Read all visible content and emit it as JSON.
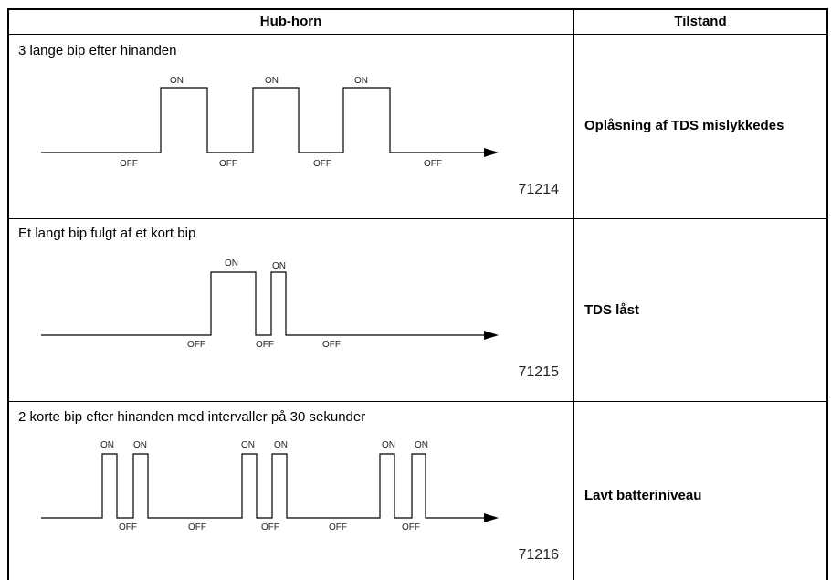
{
  "header": {
    "col1": "Hub-horn",
    "col2": "Tilstand"
  },
  "rows": [
    {
      "description": "3 lange bip efter hinanden",
      "state": "Oplåsning af TDS mislykkedes",
      "code": "71214",
      "on_label": "ON",
      "off_label": "OFF"
    },
    {
      "description": "Et langt bip fulgt af et kort bip",
      "state": "TDS låst",
      "code": "71215",
      "on_label": "ON",
      "off_label": "OFF"
    },
    {
      "description": "2 korte bip efter hinanden med intervaller på 30 sekunder",
      "state": "Lavt batteriniveau",
      "code": "71216",
      "on_label": "ON",
      "off_label": "OFF"
    }
  ]
}
